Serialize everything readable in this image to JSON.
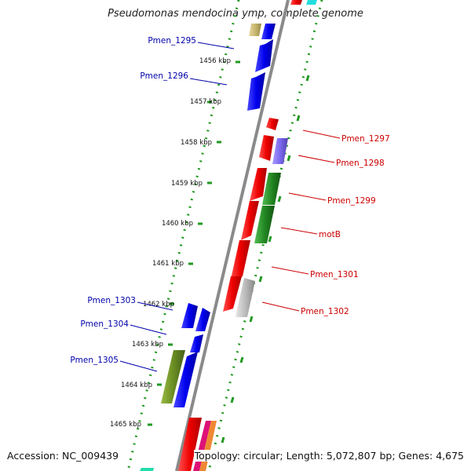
{
  "title": "Pseudomonas mendocina ymp, complete genome",
  "footer": {
    "accession": "Accession: NC_009439",
    "summary": "Topology: circular; Length: 5,072,807 bp; Genes: 4,675"
  },
  "ticks": [
    "1456 kbp",
    "1457 kbp",
    "1458 kbp",
    "1459 kbp",
    "1460 kbp",
    "1461 kbp",
    "1462 kbp",
    "1463 kbp",
    "1464 kbp",
    "1465 kbp"
  ],
  "left_labels": [
    {
      "text": "Pmen_1295",
      "color": "#0000aa"
    },
    {
      "text": "Pmen_1296",
      "color": "#0000aa"
    },
    {
      "text": "Pmen_1303",
      "color": "#0000aa"
    },
    {
      "text": "Pmen_1304",
      "color": "#0000aa"
    },
    {
      "text": "Pmen_1305",
      "color": "#0000aa"
    }
  ],
  "right_labels": [
    {
      "text": "Pmen_1297",
      "color": "#cc0000"
    },
    {
      "text": "Pmen_1298",
      "color": "#cc0000"
    },
    {
      "text": "Pmen_1299",
      "color": "#cc0000"
    },
    {
      "text": "motB",
      "color": "#cc0000"
    },
    {
      "text": "Pmen_1301",
      "color": "#cc0000"
    },
    {
      "text": "Pmen_1302",
      "color": "#cc0000"
    }
  ],
  "colors": {
    "forward_gene": "#ee0000",
    "reverse_gene": "#0000ee",
    "green_gene": "#228822",
    "olive_gene": "#6b8e23",
    "grey_gene": "#bbbbbb",
    "purple_gene": "#7b68ee",
    "khaki_gene": "#c8b870",
    "backbone": "#888888",
    "dotted_ruler": "#229922"
  }
}
